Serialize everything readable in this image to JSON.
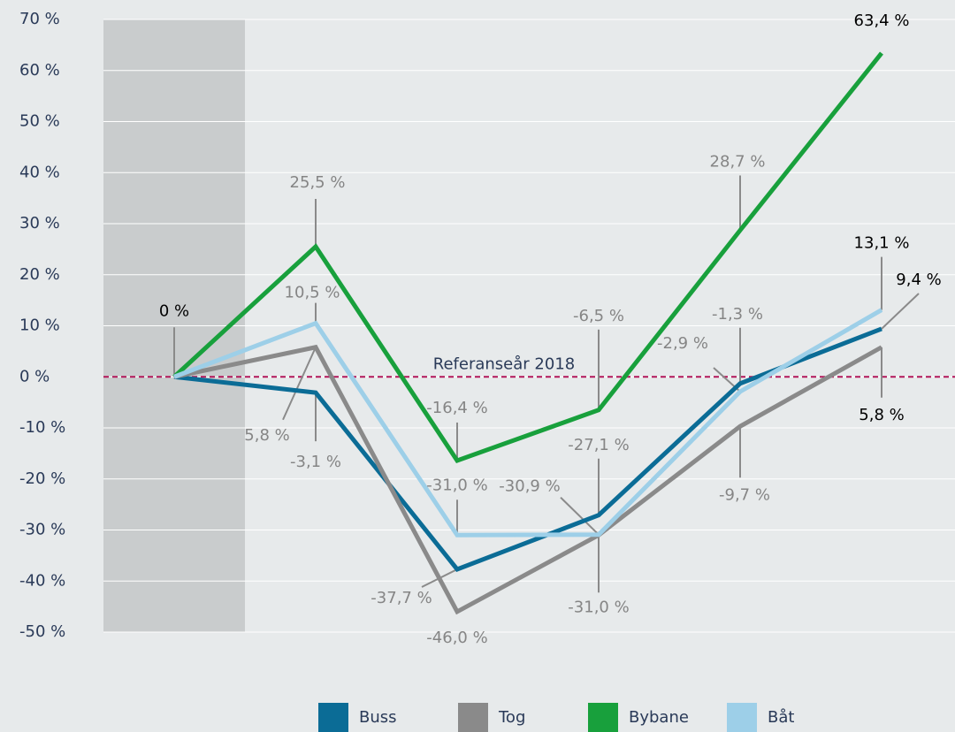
{
  "chart_data": {
    "type": "line",
    "categories": [
      null,
      null,
      null,
      null,
      null,
      null
    ],
    "series": [
      {
        "name": "Buss",
        "color": "#0b6c96",
        "values": [
          0,
          -3.1,
          -37.7,
          -27.1,
          -1.3,
          9.4
        ],
        "value_labels": [
          "0 %",
          "-3,1 %",
          "-37,7 %",
          "-27,1 %",
          "-1,3 %",
          "9,4 %"
        ]
      },
      {
        "name": "Tog",
        "color": "#8a8a8a",
        "values": [
          0,
          5.8,
          -46.0,
          -31.0,
          -9.7,
          5.8
        ],
        "value_labels": [
          null,
          "5,8 %",
          "-46,0 %",
          "-31,0 %",
          "-9,7 %",
          "5,8 %"
        ]
      },
      {
        "name": "Bybane",
        "color": "#18a03c",
        "values": [
          0,
          25.5,
          -16.4,
          -6.5,
          28.7,
          63.4
        ],
        "value_labels": [
          null,
          "25,5 %",
          "-16,4 %",
          "-6,5 %",
          "28,7 %",
          "63,4 %"
        ]
      },
      {
        "name": "Båt",
        "color": "#9dcfe8",
        "values": [
          0,
          10.5,
          -31.0,
          -30.9,
          -2.9,
          13.1
        ],
        "value_labels": [
          null,
          "10,5 %",
          "-31,0 %",
          "-30,9 %",
          "-2,9 %",
          "13,1 %"
        ]
      }
    ],
    "ylim": [
      -50,
      70
    ],
    "yticks": [
      {
        "value": -50,
        "label": "-50 %"
      },
      {
        "value": -40,
        "label": "-40 %"
      },
      {
        "value": -30,
        "label": "-30 %"
      },
      {
        "value": -20,
        "label": "-20 %"
      },
      {
        "value": -10,
        "label": "-10 %"
      },
      {
        "value": 0,
        "label": "0 %"
      },
      {
        "value": 10,
        "label": "10 %"
      },
      {
        "value": 20,
        "label": "20 %"
      },
      {
        "value": 30,
        "label": "30 %"
      },
      {
        "value": 40,
        "label": "40 %"
      },
      {
        "value": 50,
        "label": "50 %"
      },
      {
        "value": 60,
        "label": "60 %"
      },
      {
        "value": 70,
        "label": "70 %"
      }
    ],
    "grid": true,
    "reference_line": {
      "value": 0,
      "label": "Referanseår 2018",
      "color": "#b3175a"
    },
    "legend": "bottom"
  }
}
